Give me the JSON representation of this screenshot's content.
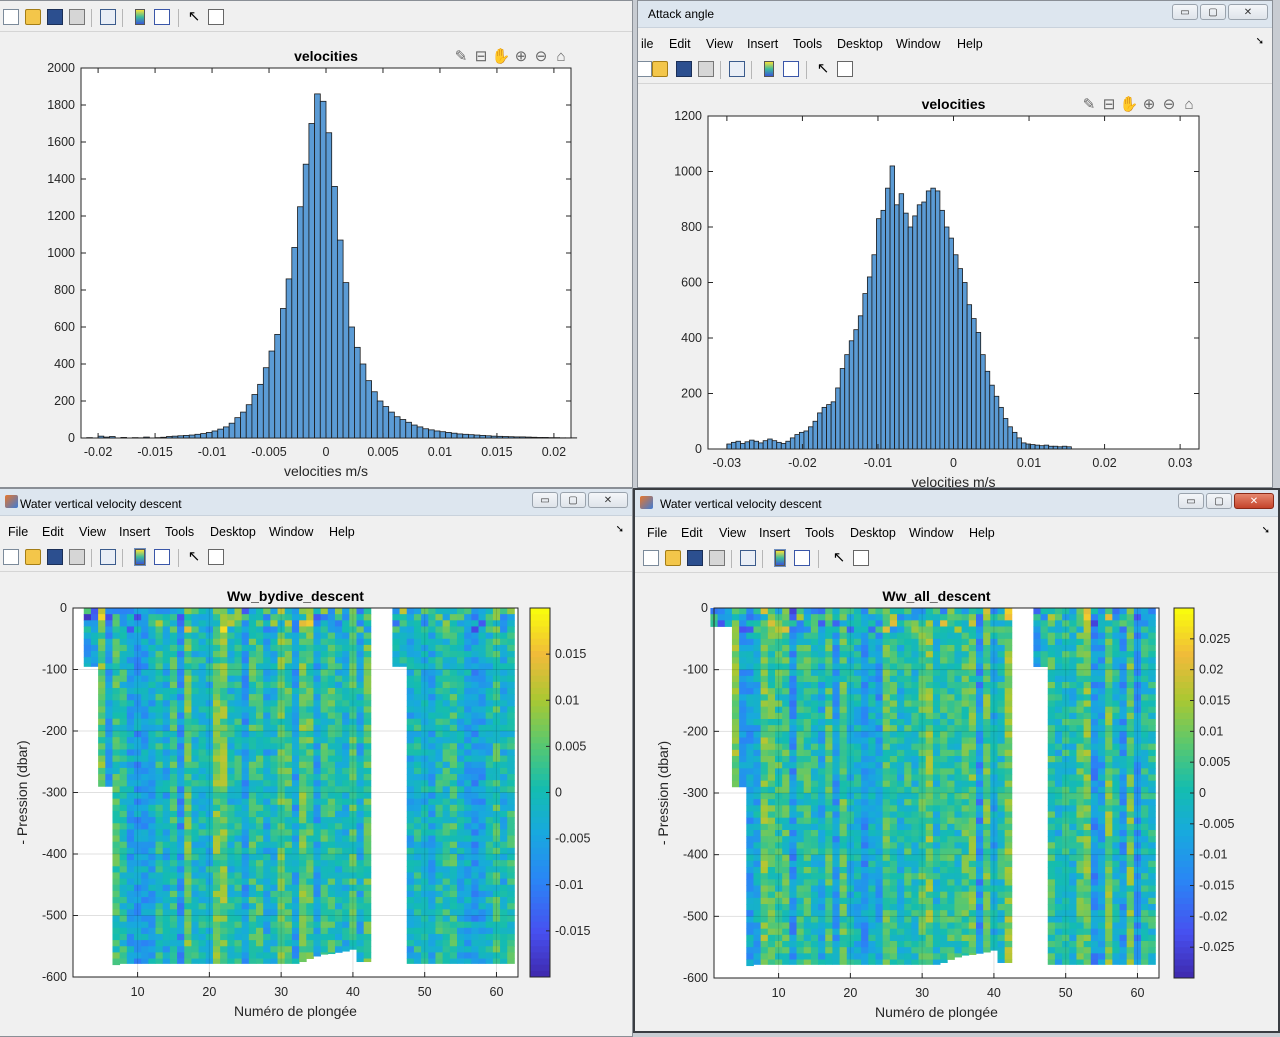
{
  "windows": {
    "top_left": {
      "title": ""
    },
    "top_right": {
      "title": "Attack angle"
    },
    "bottom_left": {
      "title": "Water vertical velocity descent"
    },
    "bottom_right": {
      "title": "Water vertical velocity descent"
    }
  },
  "menu_partial_first": "ile",
  "menu": [
    "File",
    "Edit",
    "View",
    "Insert",
    "Tools",
    "Desktop",
    "Window",
    "Help"
  ],
  "window_buttons": {
    "minimize": "▭",
    "maximize": "▢",
    "close": "✕"
  },
  "colors": {
    "bar_fill": "#5b9bd5",
    "bar_edge": "#1a1a1a",
    "axes_bg": "#ffffff",
    "figure_bg": "#f0f0f0"
  },
  "chart_data": [
    {
      "type": "bar",
      "title": "velocities",
      "xlabel": "velocities m/s",
      "ylabel": "",
      "xlim": [
        -0.0215,
        0.0215
      ],
      "ylim": [
        0,
        2000
      ],
      "xticks": [
        -0.02,
        -0.015,
        -0.01,
        -0.005,
        0,
        0.005,
        0.01,
        0.015,
        0.02
      ],
      "xticklabels": [
        "-0.02",
        "-0.015",
        "-0.01",
        "-0.005",
        "0",
        "0.005",
        "0.01",
        "0.015",
        "0.02"
      ],
      "yticks": [
        0,
        200,
        400,
        600,
        800,
        1000,
        1200,
        1400,
        1600,
        1800,
        2000
      ],
      "yticklabels": [
        "0",
        "200",
        "400",
        "600",
        "800",
        "1000",
        "1200",
        "1400",
        "1600",
        "1800",
        "2000"
      ],
      "bin_width": 0.0005,
      "bin_centers_start": -0.02075,
      "counts": [
        2,
        0,
        10,
        5,
        8,
        0,
        3,
        0,
        2,
        1,
        5,
        0,
        2,
        4,
        8,
        10,
        12,
        14,
        16,
        20,
        24,
        30,
        38,
        48,
        60,
        80,
        110,
        140,
        180,
        235,
        290,
        380,
        470,
        560,
        700,
        860,
        1030,
        1250,
        1480,
        1700,
        1860,
        1820,
        1650,
        1360,
        1070,
        840,
        600,
        490,
        400,
        310,
        250,
        200,
        170,
        140,
        115,
        100,
        85,
        70,
        60,
        50,
        44,
        38,
        34,
        30,
        26,
        22,
        20,
        18,
        16,
        14,
        12,
        10,
        9,
        8,
        7,
        6,
        6,
        5,
        4,
        3,
        3,
        2,
        2,
        1,
        1,
        1
      ]
    },
    {
      "type": "bar",
      "title": "velocities",
      "xlabel": "velocities m/s",
      "ylabel": "",
      "xlim": [
        -0.0325,
        0.0325
      ],
      "ylim": [
        0,
        1200
      ],
      "xticks": [
        -0.03,
        -0.02,
        -0.01,
        0,
        0.01,
        0.02,
        0.03
      ],
      "xticklabels": [
        "-0.03",
        "-0.02",
        "-0.01",
        "0",
        "0.01",
        "0.02",
        "0.03"
      ],
      "yticks": [
        0,
        200,
        400,
        600,
        800,
        1000,
        1200
      ],
      "yticklabels": [
        "0",
        "200",
        "400",
        "600",
        "800",
        "1000",
        "1200"
      ],
      "bin_width": 0.0006,
      "bin_centers_start": -0.0297,
      "counts": [
        18,
        24,
        28,
        20,
        26,
        32,
        28,
        22,
        30,
        36,
        30,
        24,
        20,
        28,
        40,
        52,
        60,
        65,
        80,
        100,
        130,
        150,
        160,
        170,
        220,
        290,
        340,
        390,
        430,
        480,
        560,
        620,
        700,
        830,
        860,
        940,
        1020,
        880,
        920,
        850,
        800,
        840,
        880,
        890,
        930,
        940,
        930,
        860,
        800,
        760,
        700,
        650,
        600,
        520,
        470,
        420,
        340,
        280,
        230,
        190,
        150,
        110,
        80,
        60,
        40,
        22,
        18,
        16,
        14,
        12,
        14,
        10,
        10,
        8,
        10,
        8
      ]
    },
    {
      "type": "heatmap",
      "title": "Ww_bydive_descent",
      "xlabel": "Numéro de plongée",
      "ylabel": "- Pression (dbar)",
      "xlim": [
        1,
        63
      ],
      "ylim": [
        -600,
        0
      ],
      "xticks": [
        10,
        20,
        30,
        40,
        50,
        60
      ],
      "xticklabels": [
        "10",
        "20",
        "30",
        "40",
        "50",
        "60"
      ],
      "yticks": [
        0,
        -100,
        -200,
        -300,
        -400,
        -500,
        -600
      ],
      "yticklabels": [
        "0",
        "-100",
        "-200",
        "-300",
        "-400",
        "-500",
        "-600"
      ],
      "clim": [
        -0.02,
        0.02
      ],
      "cticks": [
        0.015,
        0.01,
        0.005,
        0,
        -0.005,
        -0.01,
        -0.015
      ],
      "cticklabels": [
        "0.015",
        "0.01",
        "0.005",
        "0",
        "-0.005",
        "-0.01",
        "-0.015"
      ],
      "colormap": "parula",
      "dive_max_depth": [
        0,
        0,
        -95,
        -95,
        -290,
        -290,
        -580,
        -578,
        -578,
        -578,
        -578,
        -578,
        -578,
        -578,
        -578,
        -578,
        -578,
        -578,
        -578,
        -578,
        -578,
        -578,
        -578,
        -578,
        -578,
        -578,
        -578,
        -578,
        -578,
        -578,
        -578,
        -578,
        -575,
        -570,
        -566,
        -563,
        -562,
        -560,
        -558,
        -555,
        -575,
        -575,
        0,
        0,
        0,
        -95,
        -95,
        -578,
        -578,
        -578,
        -578,
        -578,
        -578,
        -578,
        -578,
        -578,
        -578,
        -578,
        -578,
        -578,
        -578,
        -578
      ]
    },
    {
      "type": "heatmap",
      "title": "Ww_all_descent",
      "xlabel": "Numéro de plongée",
      "ylabel": "- Pression (dbar)",
      "xlim": [
        1,
        63
      ],
      "ylim": [
        -600,
        0
      ],
      "xticks": [
        10,
        20,
        30,
        40,
        50,
        60
      ],
      "xticklabels": [
        "10",
        "20",
        "30",
        "40",
        "50",
        "60"
      ],
      "yticks": [
        0,
        -100,
        -200,
        -300,
        -400,
        -500,
        -600
      ],
      "yticklabels": [
        "0",
        "-100",
        "-200",
        "-300",
        "-400",
        "-500",
        "-600"
      ],
      "clim": [
        -0.03,
        0.03
      ],
      "cticks": [
        0.025,
        0.02,
        0.015,
        0.01,
        0.005,
        0,
        -0.005,
        -0.01,
        -0.015,
        -0.02,
        -0.025
      ],
      "cticklabels": [
        "0.025",
        "0.02",
        "0.015",
        "0.01",
        "0.005",
        "0",
        "-0.005",
        "-0.01",
        "-0.015",
        "-0.02",
        "-0.025"
      ],
      "colormap": "parula",
      "dive_max_depth": [
        -30,
        -30,
        -30,
        -290,
        -290,
        -580,
        -578,
        -578,
        -578,
        -578,
        -578,
        -578,
        -578,
        -578,
        -578,
        -578,
        -578,
        -578,
        -578,
        -578,
        -578,
        -578,
        -578,
        -578,
        -578,
        -578,
        -578,
        -578,
        -578,
        -578,
        -578,
        -578,
        -575,
        -570,
        -566,
        -563,
        -562,
        -560,
        -558,
        -555,
        -575,
        -575,
        0,
        0,
        0,
        -95,
        -95,
        -578,
        -578,
        -578,
        -578,
        -578,
        -578,
        -578,
        -578,
        -578,
        -578,
        -578,
        -578,
        -578,
        -578,
        -578
      ]
    }
  ]
}
